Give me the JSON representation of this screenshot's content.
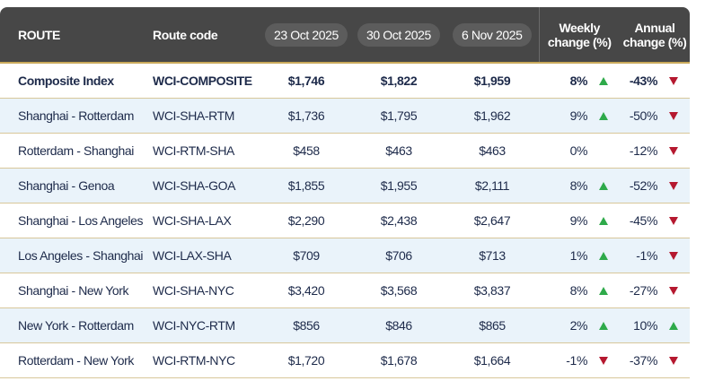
{
  "table": {
    "header": [
      "ROUTE",
      "Route code",
      "23 Oct 2025",
      "30 Oct 2025",
      "6 Nov 2025",
      "Weekly change (%)",
      "Annual change (%)"
    ],
    "rows": [
      [
        "Composite Index",
        "WCI-COMPOSITE",
        "$1,746",
        "$1,822",
        "$1,959",
        "8%",
        "-43%"
      ],
      [
        "Shanghai - Rotterdam",
        "WCI-SHA-RTM",
        "$1,736",
        "$1,795",
        "$1,962",
        "9%",
        "-50%"
      ],
      [
        "Rotterdam - Shanghai",
        "WCI-RTM-SHA",
        "$458",
        "$463",
        "$463",
        "0%",
        "-12%"
      ],
      [
        "Shanghai - Genoa",
        "WCI-SHA-GOA",
        "$1,855",
        "$1,955",
        "$2,111",
        "8%",
        "-52%"
      ],
      [
        "Shanghai - Los Angeles",
        "WCI-SHA-LAX",
        "$2,290",
        "$2,438",
        "$2,647",
        "9%",
        "-45%"
      ],
      [
        "Los Angeles - Shanghai",
        "WCI-LAX-SHA",
        "$709",
        "$706",
        "$713",
        "1%",
        "-1%"
      ],
      [
        "Shanghai - New York",
        "WCI-SHA-NYC",
        "$3,420",
        "$3,568",
        "$3,837",
        "8%",
        "-27%"
      ],
      [
        "New York - Rotterdam",
        "WCI-NYC-RTM",
        "$856",
        "$846",
        "$865",
        "2%",
        "10%"
      ],
      [
        "Rotterdam - New York",
        "WCI-RTM-NYC",
        "$1,720",
        "$1,678",
        "$1,664",
        "-1%",
        "-37%"
      ]
    ]
  }
}
